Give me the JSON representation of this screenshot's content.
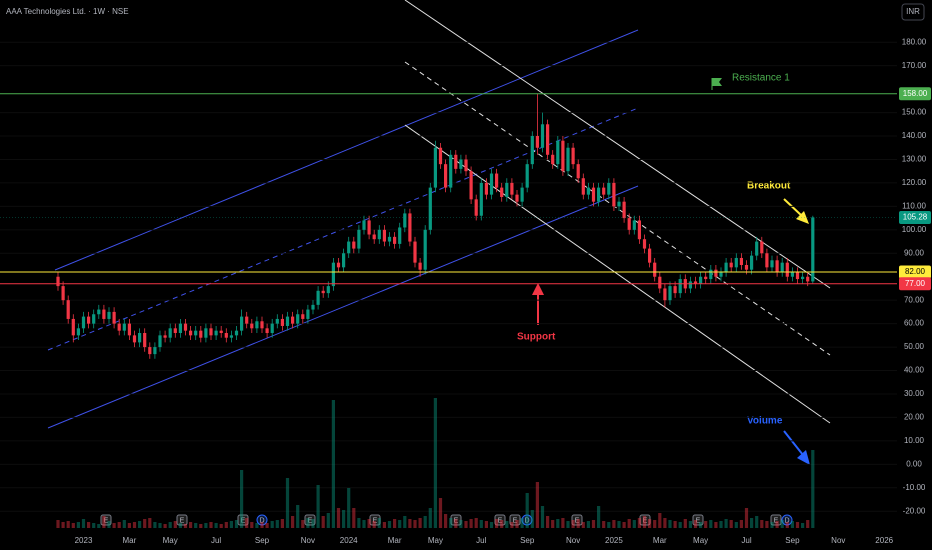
{
  "chart_data": {
    "type": "candlestick",
    "title": "AAA Technologies Ltd. · 1W · NSE",
    "currency": "INR",
    "categories": [
      null,
      null,
      null,
      null,
      null,
      "2023",
      null,
      null,
      null,
      null,
      null,
      null,
      null,
      null,
      "Mar",
      null,
      null,
      null,
      null,
      null,
      null,
      null,
      "May",
      null,
      null,
      null,
      null,
      null,
      null,
      null,
      null,
      "Jul",
      null,
      null,
      null,
      null,
      null,
      null,
      null,
      null,
      "Sep",
      null,
      null,
      null,
      null,
      null,
      null,
      null,
      null,
      "Nov",
      null,
      null,
      null,
      null,
      null,
      null,
      null,
      "2024",
      null,
      null,
      null,
      null,
      null,
      null,
      null,
      null,
      "Mar",
      null,
      null,
      null,
      null,
      null,
      null,
      null,
      "May",
      null,
      null,
      null,
      null,
      null,
      null,
      null,
      null,
      "Jul",
      null,
      null,
      null,
      null,
      null,
      null,
      null,
      null,
      "Sep",
      null,
      null,
      null,
      null,
      null,
      null,
      null,
      null,
      "Nov",
      null,
      null,
      null,
      null,
      null,
      null,
      null,
      "2025",
      null,
      null,
      null,
      null,
      null,
      null,
      null,
      null,
      "Mar",
      null,
      null,
      null,
      null,
      null,
      null,
      null,
      "May",
      null,
      null,
      null,
      null,
      null,
      null,
      null,
      null,
      "Jul",
      null,
      null,
      null,
      null,
      null,
      null,
      null,
      null,
      "Sep",
      null,
      null,
      null,
      null,
      null,
      null,
      null,
      null,
      "Nov",
      null,
      null,
      null,
      null,
      null,
      null,
      null,
      null,
      "2026",
      null
    ],
    "open": [
      80,
      76,
      70,
      62,
      55,
      58,
      63,
      60,
      64,
      66,
      62,
      65,
      60,
      57,
      60,
      55,
      52,
      56,
      50,
      47,
      50,
      55,
      54,
      58,
      56,
      60,
      57,
      55,
      57,
      54,
      58,
      55,
      57,
      56,
      54,
      55,
      57,
      63,
      60,
      58,
      61,
      58,
      56,
      60,
      62,
      59,
      63,
      60,
      64,
      62,
      66,
      68,
      74,
      73,
      76,
      86,
      84,
      90,
      95,
      92,
      100,
      104,
      98,
      96,
      100,
      95,
      97,
      94,
      101,
      107,
      95,
      86,
      83,
      100,
      118,
      135,
      128,
      118,
      132,
      126,
      130,
      125,
      113,
      106,
      120,
      115,
      124,
      118,
      114,
      120,
      115,
      112,
      118,
      128,
      140,
      135,
      145,
      132,
      128,
      138,
      125,
      135,
      128,
      122,
      115,
      118,
      112,
      118,
      115,
      120,
      110,
      112,
      105,
      100,
      104,
      96,
      92,
      86,
      80,
      75,
      70,
      76,
      73,
      79,
      75,
      78,
      77,
      80,
      79,
      83,
      80,
      82,
      86,
      84,
      88,
      85,
      83,
      89,
      95,
      90,
      84,
      87,
      82,
      86,
      80,
      82,
      79,
      80,
      78,
      null,
      null,
      null,
      null,
      null,
      null,
      null,
      null,
      null,
      null,
      null,
      null,
      null,
      null,
      null
    ],
    "high": [
      82,
      78,
      72,
      64,
      60,
      65,
      65,
      66,
      68,
      68,
      67,
      67,
      62,
      62,
      62,
      57,
      58,
      58,
      52,
      52,
      57,
      57,
      60,
      60,
      62,
      62,
      59,
      59,
      59,
      60,
      60,
      59,
      59,
      58,
      57,
      59,
      66,
      65,
      62,
      63,
      63,
      60,
      62,
      64,
      64,
      65,
      65,
      66,
      66,
      68,
      70,
      76,
      76,
      78,
      88,
      88,
      92,
      97,
      97,
      102,
      106,
      106,
      100,
      102,
      102,
      99,
      99,
      103,
      109,
      109,
      97,
      88,
      102,
      120,
      138,
      137,
      130,
      134,
      134,
      132,
      132,
      127,
      115,
      122,
      122,
      126,
      126,
      120,
      122,
      122,
      117,
      120,
      130,
      142,
      158,
      150,
      147,
      134,
      140,
      140,
      137,
      137,
      130,
      124,
      120,
      120,
      120,
      120,
      122,
      122,
      114,
      114,
      107,
      106,
      106,
      98,
      94,
      88,
      82,
      77,
      78,
      78,
      81,
      81,
      80,
      80,
      82,
      82,
      85,
      85,
      84,
      88,
      88,
      90,
      90,
      87,
      91,
      97,
      97,
      92,
      89,
      89,
      88,
      88,
      84,
      84,
      82,
      82,
      106,
      null,
      null,
      null,
      null,
      null,
      null,
      null,
      null,
      null,
      null,
      null,
      null,
      null,
      null,
      null
    ],
    "low": [
      74,
      68,
      60,
      52,
      53,
      56,
      58,
      58,
      62,
      60,
      60,
      58,
      55,
      55,
      53,
      50,
      50,
      48,
      45,
      45,
      48,
      52,
      52,
      54,
      54,
      55,
      53,
      53,
      52,
      52,
      53,
      53,
      54,
      52,
      52,
      53,
      55,
      58,
      56,
      56,
      56,
      54,
      54,
      58,
      57,
      57,
      58,
      58,
      60,
      60,
      64,
      66,
      71,
      71,
      74,
      82,
      82,
      88,
      90,
      90,
      98,
      96,
      94,
      94,
      93,
      93,
      92,
      92,
      99,
      93,
      84,
      80,
      81,
      98,
      116,
      126,
      116,
      116,
      124,
      124,
      123,
      111,
      104,
      104,
      113,
      113,
      116,
      112,
      112,
      113,
      110,
      110,
      116,
      126,
      132,
      133,
      130,
      126,
      126,
      123,
      123,
      126,
      120,
      113,
      113,
      110,
      110,
      113,
      113,
      108,
      108,
      103,
      98,
      98,
      94,
      90,
      84,
      78,
      73,
      67,
      68,
      71,
      71,
      73,
      73,
      75,
      75,
      77,
      77,
      78,
      78,
      80,
      82,
      82,
      83,
      81,
      81,
      87,
      88,
      82,
      82,
      80,
      80,
      78,
      78,
      77,
      77,
      76,
      77,
      null,
      null,
      null,
      null,
      null,
      null,
      null,
      null,
      null,
      null,
      null,
      null,
      null,
      null,
      null
    ],
    "close": [
      76,
      70,
      62,
      55,
      58,
      63,
      60,
      64,
      66,
      62,
      65,
      60,
      57,
      60,
      55,
      52,
      56,
      50,
      47,
      50,
      55,
      54,
      58,
      56,
      60,
      57,
      55,
      57,
      54,
      58,
      55,
      57,
      56,
      54,
      55,
      57,
      63,
      60,
      58,
      61,
      58,
      56,
      60,
      62,
      59,
      63,
      60,
      64,
      62,
      66,
      68,
      74,
      73,
      76,
      86,
      84,
      90,
      95,
      92,
      100,
      104,
      98,
      96,
      100,
      95,
      97,
      94,
      101,
      107,
      95,
      86,
      83,
      100,
      118,
      135,
      128,
      118,
      132,
      126,
      130,
      125,
      113,
      106,
      120,
      115,
      124,
      118,
      114,
      120,
      115,
      112,
      118,
      128,
      140,
      135,
      145,
      132,
      128,
      138,
      125,
      135,
      128,
      122,
      115,
      118,
      112,
      118,
      115,
      120,
      110,
      112,
      105,
      100,
      104,
      96,
      92,
      86,
      80,
      75,
      70,
      76,
      73,
      79,
      75,
      78,
      77,
      80,
      79,
      83,
      80,
      82,
      86,
      84,
      88,
      85,
      83,
      89,
      95,
      90,
      84,
      87,
      82,
      86,
      80,
      82,
      79,
      80,
      78,
      105.28,
      null,
      null,
      null,
      null,
      null,
      null,
      null,
      null,
      null,
      null,
      null,
      null,
      null,
      null,
      null
    ],
    "volume": [
      8,
      6,
      7,
      5,
      6,
      9,
      6,
      5,
      4,
      12,
      7,
      5,
      6,
      8,
      5,
      6,
      7,
      9,
      10,
      6,
      5,
      4,
      6,
      7,
      5,
      4,
      6,
      5,
      4,
      5,
      6,
      5,
      4,
      6,
      7,
      8,
      58,
      10,
      6,
      5,
      6,
      5,
      7,
      8,
      9,
      50,
      12,
      23,
      8,
      10,
      9,
      43,
      12,
      15,
      128,
      20,
      18,
      40,
      20,
      10,
      8,
      9,
      7,
      10,
      6,
      7,
      9,
      8,
      12,
      9,
      8,
      10,
      12,
      20,
      130,
      30,
      14,
      10,
      9,
      8,
      7,
      9,
      10,
      8,
      7,
      6,
      9,
      8,
      7,
      6,
      8,
      10,
      35,
      18,
      46,
      22,
      12,
      8,
      9,
      10,
      7,
      8,
      9,
      6,
      7,
      8,
      22,
      7,
      6,
      8,
      7,
      6,
      9,
      8,
      10,
      12,
      9,
      8,
      15,
      10,
      8,
      7,
      6,
      9,
      7,
      8,
      6,
      7,
      8,
      6,
      7,
      9,
      8,
      6,
      8,
      20,
      10,
      12,
      8,
      7,
      6,
      7,
      8,
      6,
      7,
      6,
      5,
      8,
      78,
      null,
      null,
      null,
      null,
      null,
      null,
      null,
      null,
      null,
      null,
      null,
      null,
      null,
      null,
      null
    ],
    "vlim": [
      0,
      160
    ],
    "up_color": "#089981",
    "down_color": "#f23645",
    "ylim": [
      -28,
      198
    ],
    "yticks": [
      {
        "value": 180,
        "label": "180.00"
      },
      {
        "value": 170,
        "label": "170.00"
      },
      {
        "value": 150,
        "label": "150.00"
      },
      {
        "value": 140,
        "label": "140.00"
      },
      {
        "value": 130,
        "label": "130.00"
      },
      {
        "value": 120,
        "label": "120.00"
      },
      {
        "value": 110,
        "label": "110.00"
      },
      {
        "value": 100,
        "label": "100.00"
      },
      {
        "value": 90,
        "label": "90.00"
      },
      {
        "value": 70,
        "label": "70.00"
      },
      {
        "value": 60,
        "label": "60.00"
      },
      {
        "value": 50,
        "label": "50.00"
      },
      {
        "value": 40,
        "label": "40.00"
      },
      {
        "value": 30,
        "label": "30.00"
      },
      {
        "value": 20,
        "label": "20.00"
      },
      {
        "value": 10,
        "label": "10.00"
      },
      {
        "value": 0,
        "label": "0.00"
      },
      {
        "value": -10,
        "label": "-10.00"
      },
      {
        "value": -20,
        "label": "-20.00"
      }
    ],
    "price_lines": [
      {
        "value": 158,
        "label": "158.00",
        "color": "#4caf50"
      },
      {
        "value": 82,
        "label": "82.00",
        "color": "#ffeb3b"
      },
      {
        "value": 77,
        "label": "77.00",
        "color": "#f23645"
      }
    ],
    "last_price": 105.28,
    "events": [
      "E",
      "E",
      "E",
      "D",
      "E",
      "E",
      "E",
      "E",
      "E",
      "D",
      "E",
      "E",
      "E",
      "E",
      "D"
    ],
    "annotations": {
      "resistance": "Resistance 1",
      "breakout": "Breakout",
      "support": "Support",
      "volume": "Volume"
    }
  }
}
